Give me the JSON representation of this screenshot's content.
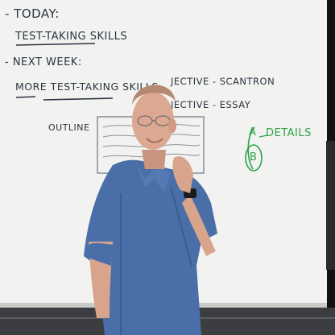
{
  "board": {
    "lines": [
      {
        "id": "today",
        "text": "- TODAY:"
      },
      {
        "id": "test-taking",
        "text": "TEST-TAKING SKILLS"
      },
      {
        "id": "next-week",
        "text": "- NEXT WEEK:"
      },
      {
        "id": "more-test-taking",
        "text": "MORE TEST-TAKING SKILLS"
      },
      {
        "id": "objective-scantron",
        "text": "JECTIVE - SCANTRON"
      },
      {
        "id": "objective-essay",
        "text": "JECTIVE - ESSAY"
      },
      {
        "id": "outline",
        "text": "OUTLINE"
      },
      {
        "id": "details",
        "text": "DETAILS"
      },
      {
        "id": "label-a",
        "text": "A"
      },
      {
        "id": "label-b",
        "text": "B"
      }
    ]
  },
  "colors": {
    "whiteboard": "#f2f3f1",
    "dark_ink": "#2b3540",
    "green_ink": "#2fa24a",
    "shirt": "#4a6fa8",
    "skin": "#d8a48c"
  }
}
